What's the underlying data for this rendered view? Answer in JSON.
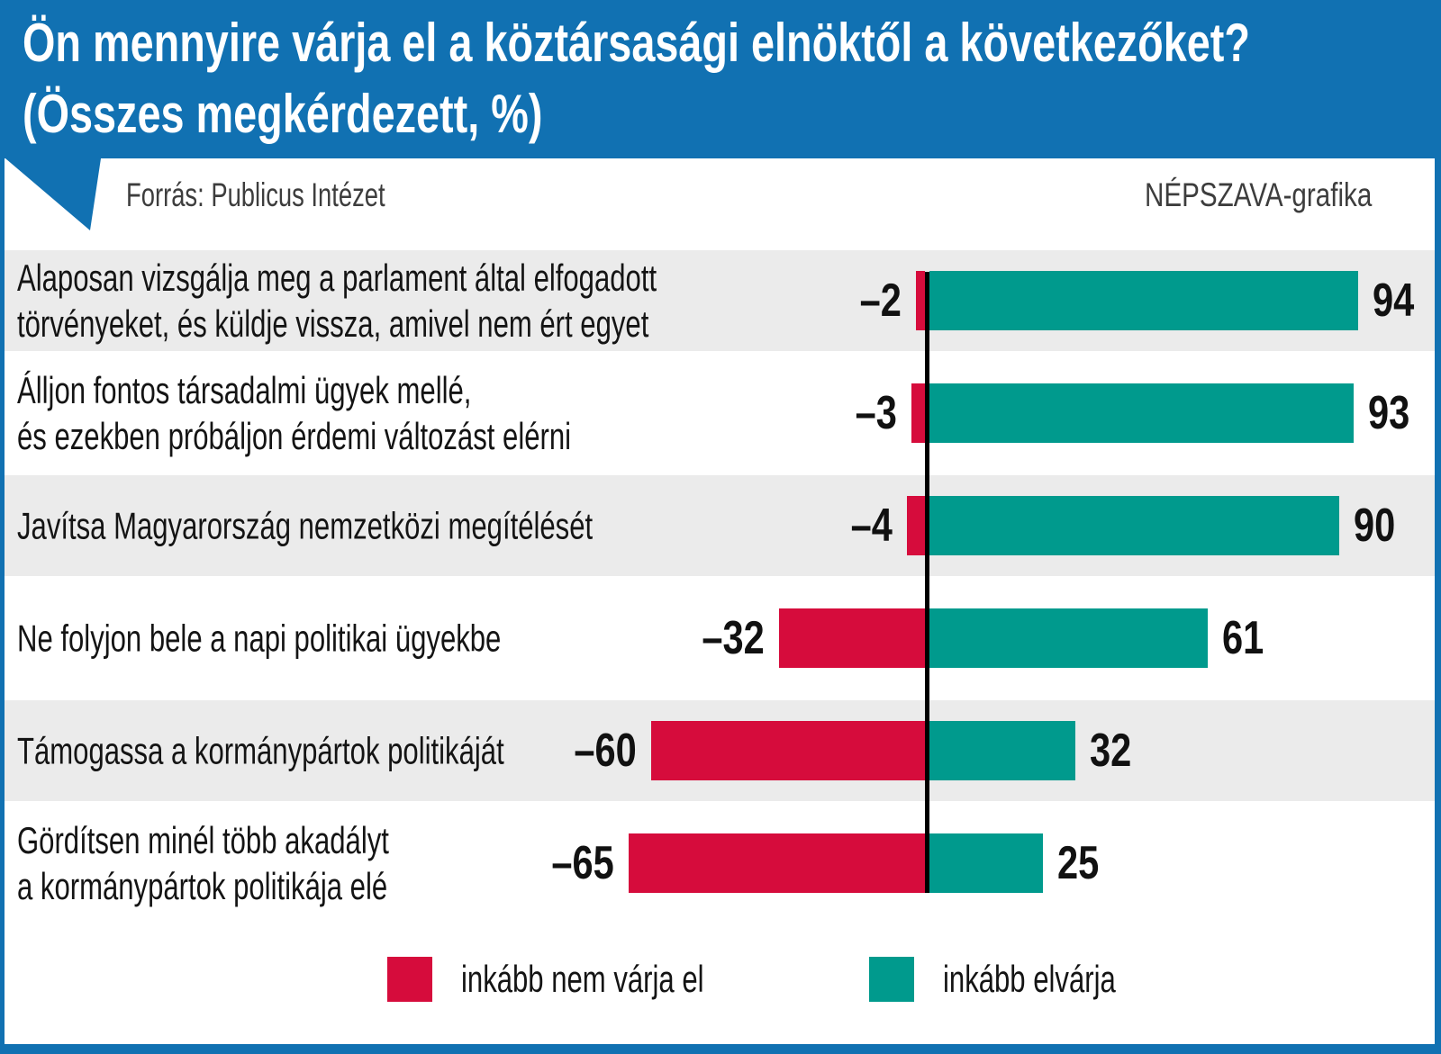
{
  "header": {
    "title_line1": "Ön mennyire várja el a köztársasági elnöktől a következőket?",
    "title_line2": "(Összes megkérdezett, %)"
  },
  "meta": {
    "source": "Forrás: Publicus Intézet",
    "credit": "NÉPSZAVA-grafika"
  },
  "colors": {
    "accent_blue": "#1171b2",
    "bar_red": "#d60c3c",
    "bar_teal": "#009a8d",
    "row_gray": "#ebebeb",
    "text_dark": "#141414"
  },
  "chart_data": {
    "type": "bar",
    "orientation": "horizontal-diverging",
    "title": "Ön mennyire várja el a köztársasági elnöktől a következőket? (Összes megkérdezett, %)",
    "categories": [
      [
        "Alaposan vizsgálja meg a parlament által elfogadott",
        "törvényeket, és küldje vissza, amivel nem ért egyet"
      ],
      [
        "Álljon fontos társadalmi ügyek mellé,",
        "és ezekben próbáljon érdemi változást elérni"
      ],
      [
        "Javítsa Magyarország nemzetközi megítélését"
      ],
      [
        "Ne folyjon bele a napi politikai ügyekbe"
      ],
      [
        "Támogassa a kormánypártok politikáját"
      ],
      [
        "Gördítsen minél több akadályt",
        "a kormánypártok politikája elé"
      ]
    ],
    "series": [
      {
        "name": "inkább nem várja el",
        "color": "#d60c3c",
        "values": [
          -2,
          -3,
          -4,
          -32,
          -60,
          -65
        ]
      },
      {
        "name": "inkább elvárja",
        "color": "#009a8d",
        "values": [
          94,
          93,
          90,
          61,
          32,
          25
        ]
      }
    ],
    "xlim": [
      -100,
      100
    ],
    "zero_line": true,
    "grid": false,
    "value_labels": "outside-bar-ends",
    "legend_position": "bottom",
    "unit": "%"
  }
}
